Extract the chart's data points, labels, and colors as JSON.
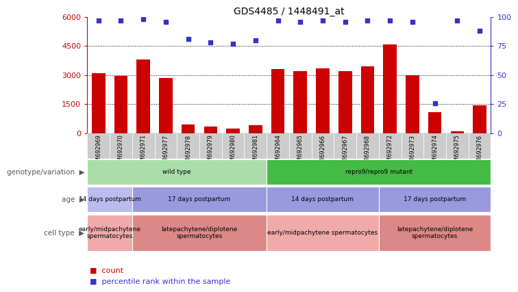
{
  "title": "GDS4485 / 1448491_at",
  "samples": [
    "GSM692969",
    "GSM692970",
    "GSM692971",
    "GSM692977",
    "GSM692978",
    "GSM692979",
    "GSM692980",
    "GSM692981",
    "GSM692964",
    "GSM692965",
    "GSM692966",
    "GSM692967",
    "GSM692968",
    "GSM692972",
    "GSM692973",
    "GSM692974",
    "GSM692975",
    "GSM692976"
  ],
  "counts": [
    3100,
    2950,
    3800,
    2850,
    450,
    350,
    250,
    400,
    3300,
    3200,
    3350,
    3200,
    3450,
    4600,
    3000,
    1100,
    80,
    1450
  ],
  "percentiles": [
    97,
    97,
    98,
    96,
    81,
    78,
    77,
    80,
    97,
    96,
    97,
    96,
    97,
    97,
    96,
    26,
    97,
    88
  ],
  "bar_color": "#cc0000",
  "dot_color": "#3333cc",
  "ylim_left": [
    0,
    6000
  ],
  "ylim_right": [
    0,
    100
  ],
  "yticks_left": [
    0,
    1500,
    3000,
    4500,
    6000
  ],
  "yticks_right": [
    0,
    25,
    50,
    75,
    100
  ],
  "grid_values": [
    1500,
    3000,
    4500
  ],
  "genotype_row": {
    "label": "genotype/variation",
    "groups": [
      {
        "text": "wild type",
        "start": 0,
        "end": 8,
        "color": "#aaddaa"
      },
      {
        "text": "repro9/repro9 mutant",
        "start": 8,
        "end": 18,
        "color": "#44bb44"
      }
    ]
  },
  "age_row": {
    "label": "age",
    "groups": [
      {
        "text": "14 days postpartum",
        "start": 0,
        "end": 2,
        "color": "#bbbbee"
      },
      {
        "text": "17 days postpartum",
        "start": 2,
        "end": 8,
        "color": "#9999dd"
      },
      {
        "text": "14 days postpartum",
        "start": 8,
        "end": 13,
        "color": "#9999dd"
      },
      {
        "text": "17 days postpartum",
        "start": 13,
        "end": 18,
        "color": "#9999dd"
      }
    ]
  },
  "celltype_row": {
    "label": "cell type",
    "groups": [
      {
        "text": "early/midpachytene\nspermatocytes",
        "start": 0,
        "end": 2,
        "color": "#f0aaaa"
      },
      {
        "text": "latepachytene/diplotene\nspermatocytes",
        "start": 2,
        "end": 8,
        "color": "#dd8888"
      },
      {
        "text": "early/midpachytene spermatocytes",
        "start": 8,
        "end": 13,
        "color": "#f0aaaa"
      },
      {
        "text": "latepachytene/diplotene\nspermatocytes",
        "start": 13,
        "end": 18,
        "color": "#dd8888"
      }
    ]
  },
  "legend_count_color": "#cc0000",
  "legend_dot_color": "#3333cc",
  "background_color": "#ffffff",
  "tick_label_color_left": "#cc0000",
  "tick_label_color_right": "#3333cc",
  "row_label_color": "#555555",
  "xticklabel_bg": "#cccccc"
}
